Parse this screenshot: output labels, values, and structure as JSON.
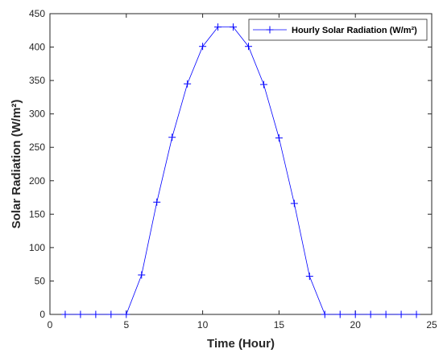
{
  "chart_data": {
    "type": "line",
    "xlabel": "Time (Hour)",
    "ylabel": "Solar Radiation (W/m²)",
    "xlim": [
      0,
      25
    ],
    "ylim": [
      0,
      450
    ],
    "x_ticks": [
      "0",
      "5",
      "10",
      "15",
      "20",
      "25"
    ],
    "y_ticks": [
      "0",
      "50",
      "100",
      "150",
      "200",
      "250",
      "300",
      "350",
      "400",
      "450"
    ],
    "grid": false,
    "legend_position": "top-right",
    "series": [
      {
        "name": "Hourly Solar Radiation (W/m²)",
        "color": "#0000ff",
        "marker": "plus",
        "x": [
          1,
          2,
          3,
          4,
          5,
          6,
          7,
          8,
          9,
          10,
          11,
          12,
          13,
          14,
          15,
          16,
          17,
          18,
          19,
          20,
          21,
          22,
          23,
          24
        ],
        "y": [
          0,
          0,
          0,
          0,
          0,
          59,
          168,
          265,
          345,
          401,
          430,
          430,
          401,
          344,
          264,
          166,
          57,
          0,
          0,
          0,
          0,
          0,
          0,
          0
        ]
      }
    ]
  }
}
